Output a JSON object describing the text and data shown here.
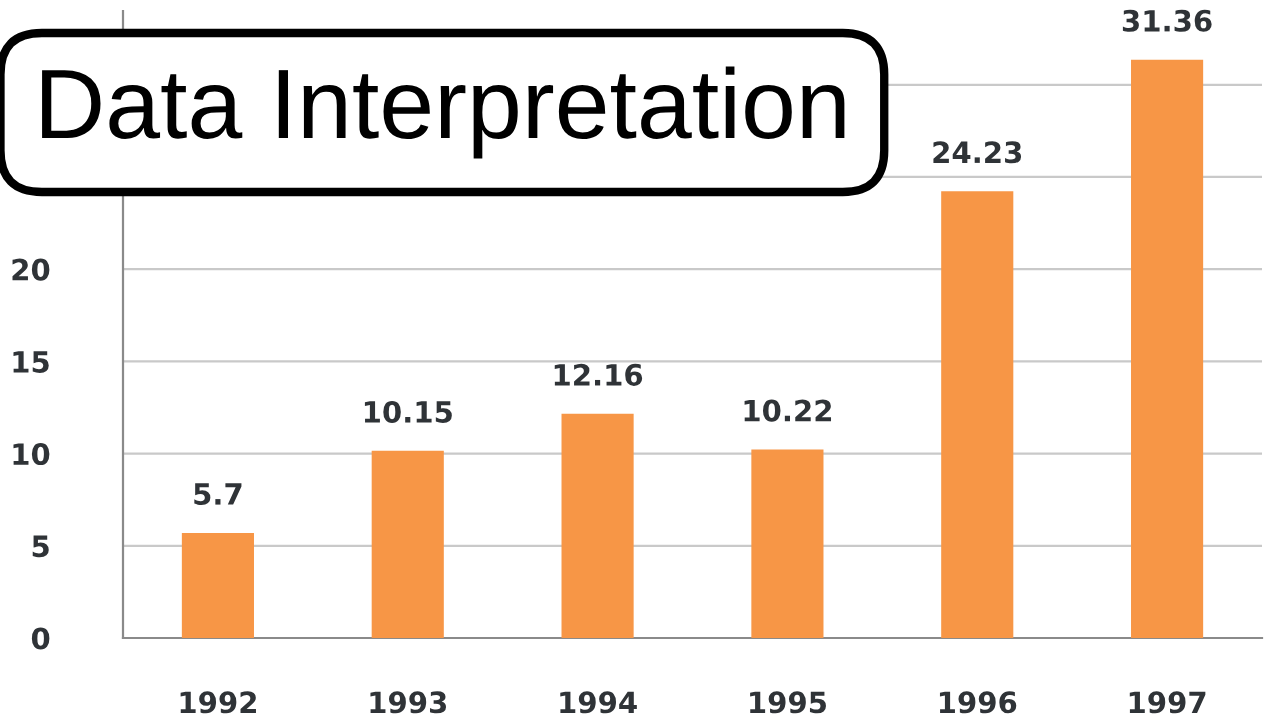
{
  "chart_data": {
    "type": "bar",
    "title": "Data Interpretation",
    "categories": [
      "1992",
      "1993",
      "1994",
      "1995",
      "1996",
      "1997"
    ],
    "values": [
      5.7,
      10.15,
      12.16,
      10.22,
      24.23,
      31.36
    ],
    "color": "#f79646",
    "ylim": [
      0,
      34
    ],
    "yticks": [
      0,
      5,
      10,
      15,
      20,
      {
        "value": 25,
        "label": null
      },
      {
        "value": 30,
        "label": null
      }
    ],
    "grid": "y",
    "data_labels": true
  }
}
